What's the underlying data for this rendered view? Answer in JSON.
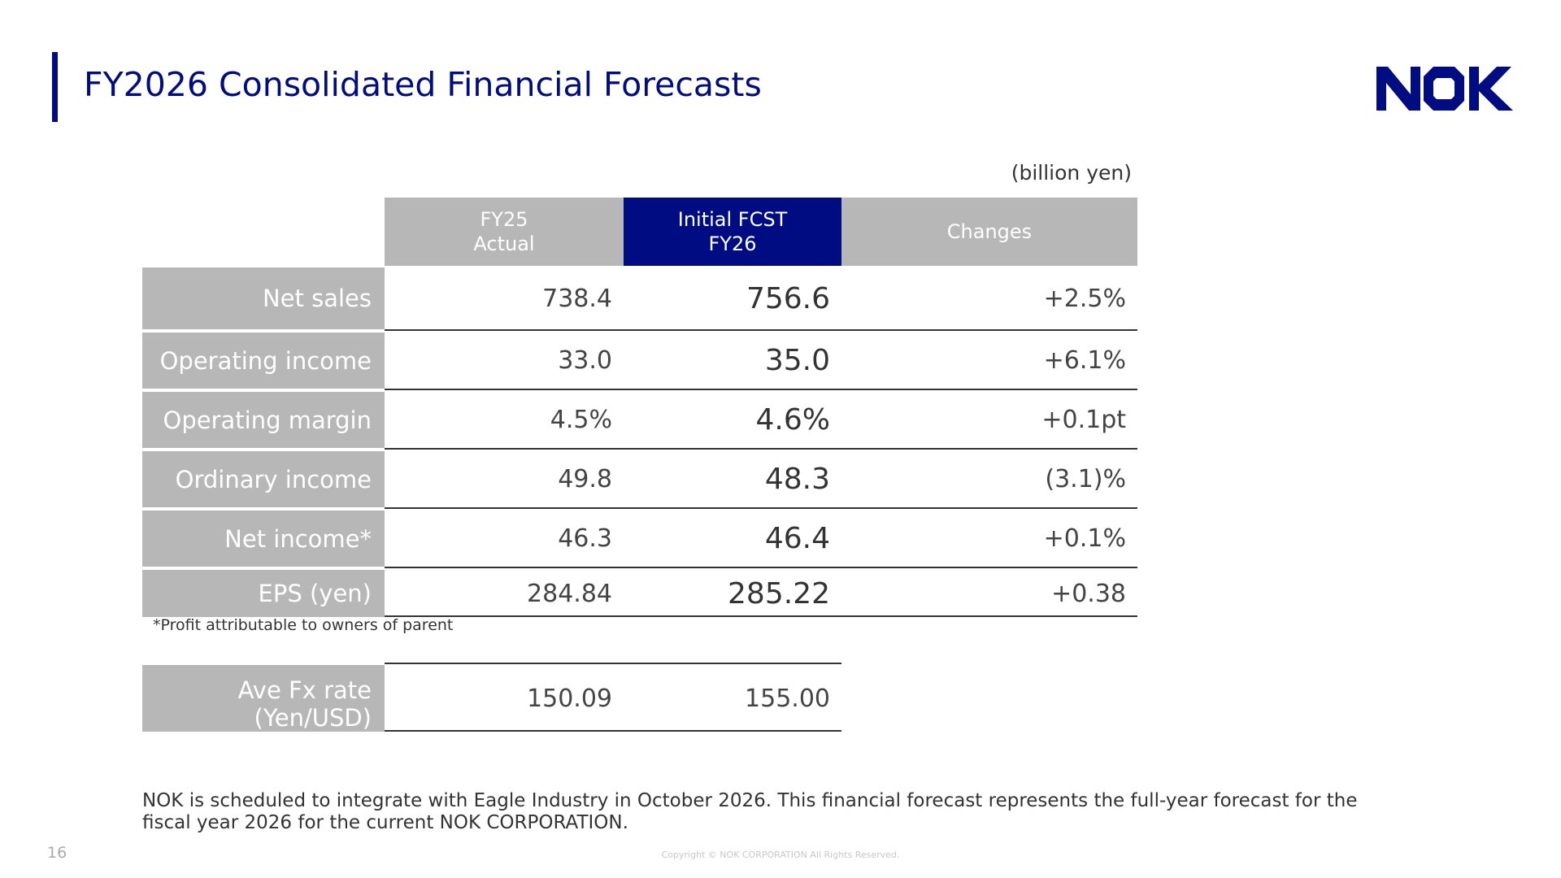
{
  "title": "FY2026 Consolidated Financial Forecasts",
  "logo": {
    "text": "NOK",
    "color": "#000c82"
  },
  "unit": "(billion yen)",
  "header": {
    "fy25_line1": "FY25",
    "fy25_line2": "Actual",
    "fy26_line1": "Initial FCST",
    "fy26_line2": "FY26",
    "changes": "Changes"
  },
  "rows": [
    {
      "label": "Net sales",
      "fy25": "738.4",
      "fy26": "756.6",
      "change": "+2.5%"
    },
    {
      "label": "Operating income",
      "fy25": "33.0",
      "fy26": "35.0",
      "change": "+6.1%"
    },
    {
      "label": "Operating margin",
      "fy25": "4.5%",
      "fy26": "4.6%",
      "change": "+0.1pt"
    },
    {
      "label": "Ordinary income",
      "fy25": "49.8",
      "fy26": "48.3",
      "change": "(3.1)%"
    },
    {
      "label": "Net income*",
      "fy25": "46.3",
      "fy26": "46.4",
      "change": "+0.1%"
    },
    {
      "label": "EPS (yen)",
      "fy25": "284.84",
      "fy26": "285.22",
      "change": "+0.38"
    }
  ],
  "footnote": "*Profit attributable to owners of parent",
  "fx": {
    "label_line1": "Ave Fx rate",
    "label_line2": "(Yen/USD)",
    "fy25": "150.09",
    "fy26": "155.00"
  },
  "note": "NOK is scheduled to integrate with Eagle Industry in October 2026. This financial forecast represents the full-year forecast for the fiscal year 2026 for the current NOK CORPORATION.",
  "page_number": "16",
  "copyright": "Copyright © NOK CORPORATION All Rights Reserved.",
  "colors": {
    "brand": "#000c82",
    "header_gray": "#b7b7b7"
  }
}
